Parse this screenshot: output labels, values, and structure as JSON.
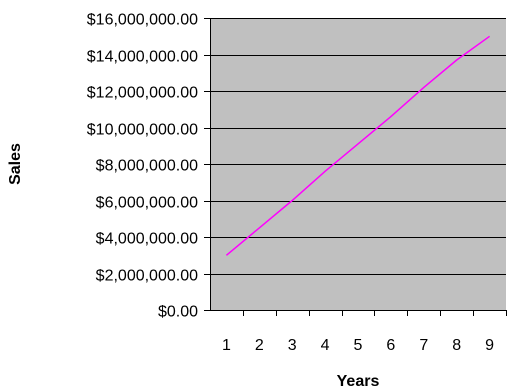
{
  "chart_data": {
    "type": "line",
    "title": "",
    "xlabel": "Years",
    "ylabel": "Sales",
    "x": [
      1,
      2,
      3,
      4,
      5,
      6,
      7,
      8,
      9
    ],
    "series": [
      {
        "color": "#ff00ff",
        "values": [
          3000000,
          4500000,
          6000000,
          7600000,
          9100000,
          10600000,
          12200000,
          13700000,
          15000000
        ]
      }
    ],
    "ylim": [
      0,
      16000000
    ],
    "yticks": [
      0,
      2000000,
      4000000,
      6000000,
      8000000,
      10000000,
      12000000,
      14000000,
      16000000
    ],
    "ytick_labels": [
      "$0.00",
      "$2,000,000.00",
      "$4,000,000.00",
      "$6,000,000.00",
      "$8,000,000.00",
      "$10,000,000.00",
      "$12,000,000.00",
      "$14,000,000.00",
      "$16,000,000.00"
    ],
    "xtick_labels": [
      "1",
      "2",
      "3",
      "4",
      "5",
      "6",
      "7",
      "8",
      "9"
    ],
    "plot_background": "#c0c0c0",
    "grid": true,
    "legend": "none"
  }
}
